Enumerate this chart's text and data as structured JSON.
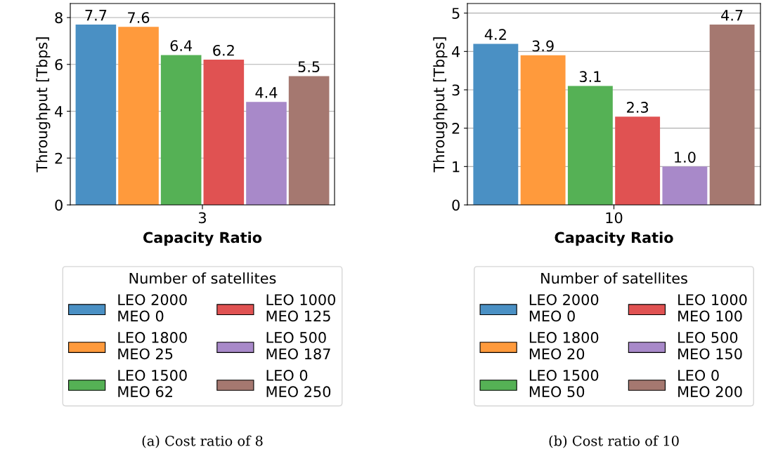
{
  "chart_data": [
    {
      "type": "bar",
      "categories": [
        null,
        null,
        null,
        null,
        null,
        null
      ],
      "xlabel": "Capacity Ratio",
      "ylabel": "Throughput [Tbps]",
      "ylim": [
        0,
        8.6
      ],
      "yticks": [
        0,
        2,
        4,
        6,
        8
      ],
      "grid": "y",
      "data_labels": true,
      "legend": "bottom",
      "legend_title": "Number of satellites",
      "annotations": [
        "3",
        "(a) Cost ratio of 8"
      ],
      "series": [
        {
          "name": "LEO 2000\nMEO 0",
          "color": "#4a90c4",
          "values": [
            7.7,
            null,
            null,
            null,
            null,
            null
          ]
        },
        {
          "name": "LEO 1800\nMEO 25",
          "color": "#ff9a3c",
          "values": [
            null,
            7.6,
            null,
            null,
            null,
            null
          ]
        },
        {
          "name": "LEO 1500\nMEO 62",
          "color": "#55b155",
          "values": [
            null,
            null,
            6.4,
            null,
            null,
            null
          ]
        },
        {
          "name": "LEO 1000\nMEO 125",
          "color": "#e05252",
          "values": [
            null,
            null,
            null,
            6.2,
            null,
            null
          ]
        },
        {
          "name": "LEO 500\nMEO 187",
          "color": "#a889c9",
          "values": [
            null,
            null,
            null,
            null,
            4.4,
            null
          ]
        },
        {
          "name": "LEO 0\nMEO 250",
          "color": "#a57870",
          "values": [
            null,
            null,
            null,
            null,
            null,
            5.5
          ]
        }
      ]
    },
    {
      "type": "bar",
      "categories": [
        null,
        null,
        null,
        null,
        null,
        null
      ],
      "xlabel": "Capacity Ratio",
      "ylabel": "Throughput [Tbps]",
      "ylim": [
        0,
        5.25
      ],
      "yticks": [
        0,
        1,
        2,
        3,
        4,
        5
      ],
      "grid": "y",
      "data_labels": true,
      "legend": "bottom",
      "legend_title": "Number of satellites",
      "annotations": [
        "10",
        "(b) Cost ratio of 10"
      ],
      "series": [
        {
          "name": "LEO 2000\nMEO 0",
          "color": "#4a90c4",
          "values": [
            4.2,
            null,
            null,
            null,
            null,
            null
          ]
        },
        {
          "name": "LEO 1800\nMEO 20",
          "color": "#ff9a3c",
          "values": [
            null,
            3.9,
            null,
            null,
            null,
            null
          ]
        },
        {
          "name": "LEO 1500\nMEO 50",
          "color": "#55b155",
          "values": [
            null,
            null,
            3.1,
            null,
            null,
            null
          ]
        },
        {
          "name": "LEO 1000\nMEO 100",
          "color": "#e05252",
          "values": [
            null,
            null,
            null,
            2.3,
            null,
            null
          ]
        },
        {
          "name": "LEO 500\nMEO 150",
          "color": "#a889c9",
          "values": [
            null,
            null,
            null,
            null,
            1.0,
            null
          ],
          "value_labels": [
            null,
            null,
            null,
            null,
            "1.0",
            null
          ]
        },
        {
          "name": "LEO 0\nMEO 200",
          "color": "#a57870",
          "values": [
            null,
            null,
            null,
            null,
            null,
            4.7
          ]
        }
      ]
    }
  ]
}
